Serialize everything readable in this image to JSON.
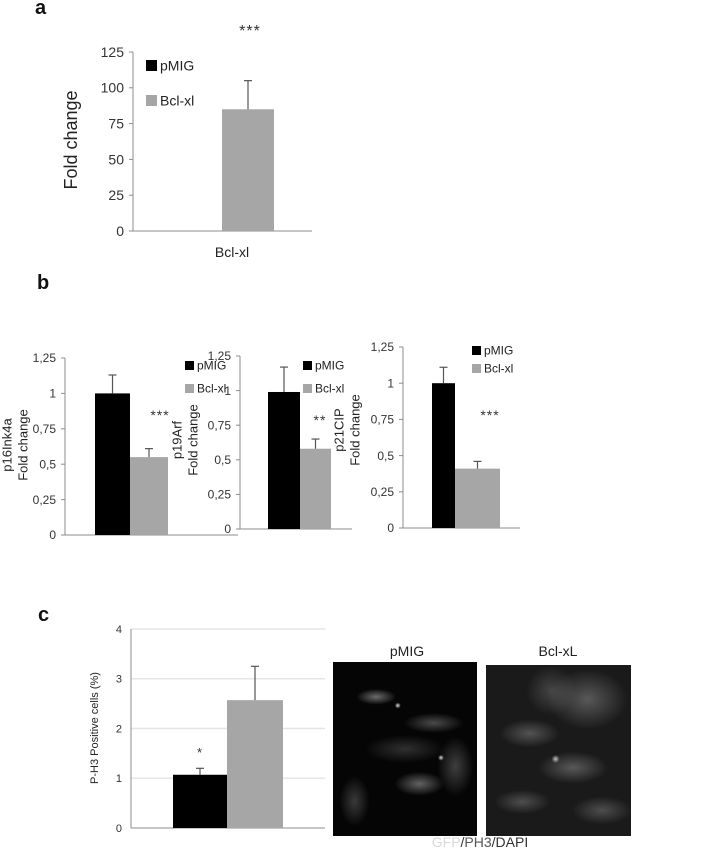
{
  "panels": {
    "a": "a",
    "b": "b",
    "c": "c"
  },
  "colors": {
    "pMIG": "#000000",
    "Bcl-xl": "#a6a6a6",
    "axis": "#8c8c8c",
    "grid": "#e6e6e6"
  },
  "chart_data": [
    {
      "type": "bar",
      "panel": "a",
      "title": "",
      "ylabel": [
        "Fold change"
      ],
      "xlabel": "",
      "categories": [
        "Bcl-xl"
      ],
      "series": [
        {
          "name": "pMIG",
          "values": [
            null
          ],
          "errors": [
            null
          ]
        },
        {
          "name": "Bcl-xl",
          "values": [
            85
          ],
          "errors": [
            20
          ]
        }
      ],
      "ylim": [
        0,
        125
      ],
      "yticks": [
        0,
        25,
        50,
        75,
        100,
        125
      ],
      "ytick_labels": [
        "0",
        "25",
        "50",
        "75",
        "100",
        "125"
      ],
      "legend": [
        "pMIG",
        "Bcl-xl"
      ],
      "legend_position": "top-left",
      "annotations": [
        "***"
      ],
      "grid": false
    },
    {
      "type": "bar",
      "panel": "b",
      "ylabel": [
        "p16Ink4a",
        "Fold change"
      ],
      "categories": [
        ""
      ],
      "series": [
        {
          "name": "pMIG",
          "values": [
            1.0
          ],
          "errors": [
            0.13
          ]
        },
        {
          "name": "Bcl-xl",
          "values": [
            0.55
          ],
          "errors": [
            0.06
          ]
        }
      ],
      "ylim": [
        0,
        1.25
      ],
      "yticks": [
        0,
        0.25,
        0.5,
        0.75,
        1,
        1.25
      ],
      "ytick_labels": [
        "0",
        "0,25",
        "0,5",
        "0,75",
        "1",
        "1,25"
      ],
      "legend": [
        "pMIG",
        "Bcl-xl"
      ],
      "legend_position": "top-right",
      "annotations": [
        "***"
      ],
      "grid": false
    },
    {
      "type": "bar",
      "panel": "b",
      "ylabel": [
        "p19Arf",
        "Fold change"
      ],
      "categories": [
        ""
      ],
      "series": [
        {
          "name": "pMIG",
          "values": [
            0.99
          ],
          "errors": [
            0.18
          ]
        },
        {
          "name": "Bcl-xl",
          "values": [
            0.58
          ],
          "errors": [
            0.07
          ]
        }
      ],
      "ylim": [
        0,
        1.25
      ],
      "yticks": [
        0,
        0.25,
        0.5,
        0.75,
        1,
        1.25
      ],
      "ytick_labels": [
        "0",
        "0,25",
        "0,5",
        "0,75",
        "1",
        "1,25"
      ],
      "legend": [
        "pMIG",
        "Bcl-xl"
      ],
      "legend_position": "top-right",
      "annotations": [
        "**"
      ],
      "grid": false
    },
    {
      "type": "bar",
      "panel": "b",
      "ylabel": [
        "p21CIP",
        "Fold change"
      ],
      "categories": [
        ""
      ],
      "series": [
        {
          "name": "pMIG",
          "values": [
            1.0
          ],
          "errors": [
            0.11
          ]
        },
        {
          "name": "Bcl-xl",
          "values": [
            0.41
          ],
          "errors": [
            0.05
          ]
        }
      ],
      "ylim": [
        0,
        1.25
      ],
      "yticks": [
        0,
        0.25,
        0.5,
        0.75,
        1,
        1.25
      ],
      "ytick_labels": [
        "0",
        "0,25",
        "0,5",
        "0,75",
        "1",
        "1,25"
      ],
      "legend": [
        "pMIG",
        "Bcl-xl"
      ],
      "legend_position": "top-right",
      "annotations": [
        "***"
      ],
      "grid": false
    },
    {
      "type": "bar",
      "panel": "c",
      "ylabel": [
        "P-H3 Positive cells (%)"
      ],
      "categories": [
        ""
      ],
      "series": [
        {
          "name": "pMIG",
          "values": [
            1.07
          ],
          "errors": [
            0.13
          ]
        },
        {
          "name": "Bcl-xl",
          "values": [
            2.57
          ],
          "errors": [
            0.68
          ]
        }
      ],
      "ylim": [
        0,
        4
      ],
      "yticks": [
        0,
        1,
        2,
        3,
        4
      ],
      "ytick_labels": [
        "0",
        "1",
        "2",
        "3",
        "4"
      ],
      "legend": [],
      "annotations": [
        "*"
      ],
      "grid": true
    }
  ],
  "panel_a_xlabel": "Bcl-xl",
  "images": {
    "pMIG_title": "pMIG",
    "bclxl_title": "Bcl-xL",
    "caption": {
      "gfp": "GFP",
      "sep1": "/",
      "ph3": "PH3",
      "sep2": "/",
      "dapi": "DAPI"
    }
  }
}
